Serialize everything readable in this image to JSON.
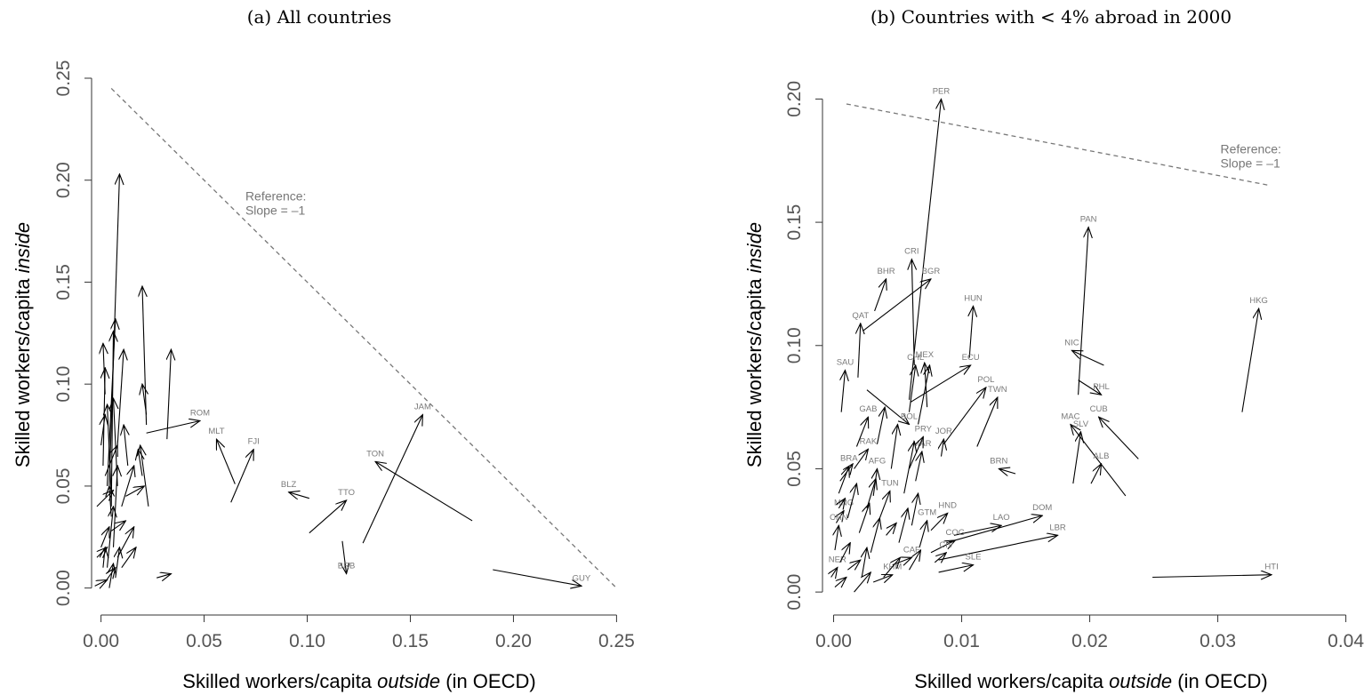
{
  "chart_data": [
    {
      "type": "scatter",
      "title": "(a) All countries",
      "xlabel": {
        "pre": "Skilled workers/capita ",
        "em": "outside",
        "post": " (in OECD)"
      },
      "ylabel": {
        "pre": "Skilled workers/capita ",
        "em": "inside",
        "post": ""
      },
      "xlim": [
        -0.005,
        0.255
      ],
      "ylim": [
        -0.008,
        0.25
      ],
      "xticks": [
        0,
        0.05,
        0.1,
        0.15,
        0.2,
        0.25
      ],
      "xtick_labels": [
        "0.00",
        "0.05",
        "0.10",
        "0.15",
        "0.20",
        "0.25"
      ],
      "yticks": [
        0,
        0.05,
        0.1,
        0.15,
        0.2,
        0.25
      ],
      "ytick_labels": [
        "0.00",
        "0.05",
        "0.10",
        "0.15",
        "0.20",
        "0.25"
      ],
      "reference_line": {
        "x": [
          0.005,
          0.25
        ],
        "y": [
          0.245,
          0.0
        ],
        "label_lines": [
          "Reference:",
          "Slope = –1"
        ],
        "label_at": [
          0.07,
          0.19
        ]
      },
      "arrows": [
        {
          "label": "GUY",
          "x0": 0.19,
          "y0": 0.009,
          "x1": 0.233,
          "y1": 0.001
        },
        {
          "label": "JAM",
          "x0": 0.127,
          "y0": 0.022,
          "x1": 0.156,
          "y1": 0.085
        },
        {
          "label": "TON",
          "x0": 0.18,
          "y0": 0.033,
          "x1": 0.133,
          "y1": 0.062
        },
        {
          "label": "TTO",
          "x0": 0.101,
          "y0": 0.027,
          "x1": 0.119,
          "y1": 0.043
        },
        {
          "label": "BRB",
          "x0": 0.117,
          "y0": 0.023,
          "x1": 0.119,
          "y1": 0.007
        },
        {
          "label": "BLZ",
          "x0": 0.101,
          "y0": 0.044,
          "x1": 0.091,
          "y1": 0.047
        },
        {
          "label": "FJI",
          "x0": 0.063,
          "y0": 0.042,
          "x1": 0.074,
          "y1": 0.068
        },
        {
          "label": "MLT",
          "x0": 0.065,
          "y0": 0.051,
          "x1": 0.056,
          "y1": 0.073
        },
        {
          "label": "ROM",
          "x0": 0.022,
          "y0": 0.076,
          "x1": 0.048,
          "y1": 0.082
        },
        {
          "label": "",
          "x0": 0.027,
          "y0": 0.005,
          "x1": 0.034,
          "y1": 0.007
        },
        {
          "label": "",
          "x0": 0.032,
          "y0": 0.073,
          "x1": 0.034,
          "y1": 0.117
        },
        {
          "label": "",
          "x0": 0.004,
          "y0": 0.05,
          "x1": 0.009,
          "y1": 0.203
        },
        {
          "label": "",
          "x0": 0.022,
          "y0": 0.08,
          "x1": 0.02,
          "y1": 0.148
        },
        {
          "label": "",
          "x0": 0.003,
          "y0": 0.05,
          "x1": 0.007,
          "y1": 0.132
        },
        {
          "label": "",
          "x0": 0.005,
          "y0": 0.04,
          "x1": 0.006,
          "y1": 0.126
        },
        {
          "label": "",
          "x0": 0.002,
          "y0": 0.095,
          "x1": 0.001,
          "y1": 0.12
        },
        {
          "label": "",
          "x0": 0.008,
          "y0": 0.07,
          "x1": 0.011,
          "y1": 0.117
        },
        {
          "label": "",
          "x0": 0.001,
          "y0": 0.06,
          "x1": 0.002,
          "y1": 0.108
        },
        {
          "label": "",
          "x0": 0.022,
          "y0": 0.085,
          "x1": 0.02,
          "y1": 0.1
        },
        {
          "label": "",
          "x0": 0.008,
          "y0": 0.05,
          "x1": 0.006,
          "y1": 0.093
        },
        {
          "label": "",
          "x0": 0.005,
          "y0": 0.045,
          "x1": 0.003,
          "y1": 0.09
        },
        {
          "label": "",
          "x0": 0.013,
          "y0": 0.06,
          "x1": 0.011,
          "y1": 0.08
        },
        {
          "label": "",
          "x0": 0.023,
          "y0": 0.04,
          "x1": 0.019,
          "y1": 0.07
        },
        {
          "label": "",
          "x0": 0.02,
          "y0": 0.055,
          "x1": 0.018,
          "y1": 0.068
        },
        {
          "label": "",
          "x0": 0.0,
          "y0": 0.07,
          "x1": 0.002,
          "y1": 0.085
        },
        {
          "label": "",
          "x0": 0.006,
          "y0": 0.02,
          "x1": 0.008,
          "y1": 0.06
        },
        {
          "label": "",
          "x0": -0.002,
          "y0": 0.04,
          "x1": 0.006,
          "y1": 0.048
        },
        {
          "label": "",
          "x0": 0.012,
          "y0": 0.045,
          "x1": 0.021,
          "y1": 0.05
        },
        {
          "label": "",
          "x0": 0.01,
          "y0": 0.04,
          "x1": 0.016,
          "y1": 0.06
        },
        {
          "label": "",
          "x0": 0.003,
          "y0": 0.01,
          "x1": 0.006,
          "y1": 0.04
        },
        {
          "label": "",
          "x0": 0.0,
          "y0": 0.02,
          "x1": 0.004,
          "y1": 0.03
        },
        {
          "label": "",
          "x0": 0.008,
          "y0": 0.015,
          "x1": 0.016,
          "y1": 0.03
        },
        {
          "label": "",
          "x0": 0.01,
          "y0": 0.01,
          "x1": 0.017,
          "y1": 0.02
        },
        {
          "label": "",
          "x0": 0.005,
          "y0": 0.028,
          "x1": 0.012,
          "y1": 0.033
        },
        {
          "label": "",
          "x0": 0.002,
          "y0": 0.003,
          "x1": 0.007,
          "y1": 0.01
        },
        {
          "label": "",
          "x0": -0.003,
          "y0": 0.001,
          "x1": 0.003,
          "y1": 0.004
        },
        {
          "label": "",
          "x0": 0.001,
          "y0": 0.01,
          "x1": 0.002,
          "y1": 0.02
        },
        {
          "label": "",
          "x0": 0.004,
          "y0": 0.0,
          "x1": 0.006,
          "y1": 0.012
        },
        {
          "label": "",
          "x0": 0.005,
          "y0": 0.035,
          "x1": 0.004,
          "y1": 0.05
        },
        {
          "label": "",
          "x0": 0.002,
          "y0": 0.055,
          "x1": 0.008,
          "y1": 0.07
        },
        {
          "label": "",
          "x0": -0.002,
          "y0": 0.015,
          "x1": 0.003,
          "y1": 0.02
        },
        {
          "label": "",
          "x0": 0.007,
          "y0": 0.005,
          "x1": 0.009,
          "y1": 0.02
        }
      ]
    },
    {
      "type": "scatter",
      "title": "(b) Countries with < 4% abroad in 2000",
      "xlabel": {
        "pre": "Skilled workers/capita ",
        "em": "outside",
        "post": " (in OECD)"
      },
      "ylabel": {
        "pre": "Skilled workers/capita ",
        "em": "inside",
        "post": ""
      },
      "xlim": [
        -0.0008,
        0.041
      ],
      "ylim": [
        -0.005,
        0.207
      ],
      "xticks": [
        0,
        0.01,
        0.02,
        0.03,
        0.04
      ],
      "xtick_labels": [
        "0.00",
        "0.01",
        "0.02",
        "0.03",
        "0.04"
      ],
      "yticks": [
        0,
        0.05,
        0.1,
        0.15,
        0.2
      ],
      "ytick_labels": [
        "0.00",
        "0.05",
        "0.10",
        "0.15",
        "0.20"
      ],
      "reference_line": {
        "x": [
          0.001,
          0.034
        ],
        "y": [
          0.198,
          0.165
        ],
        "label_lines": [
          "Reference:",
          "Slope = –1"
        ],
        "label_at": [
          0.0302,
          0.178
        ]
      },
      "arrows": [
        {
          "label": "PER",
          "x0": 0.0059,
          "y0": 0.078,
          "x1": 0.0084,
          "y1": 0.2
        },
        {
          "label": "PAN",
          "x0": 0.0191,
          "y0": 0.08,
          "x1": 0.0199,
          "y1": 0.148
        },
        {
          "label": "HKG",
          "x0": 0.0319,
          "y0": 0.073,
          "x1": 0.0332,
          "y1": 0.115
        },
        {
          "label": "CRI",
          "x0": 0.0063,
          "y0": 0.092,
          "x1": 0.0061,
          "y1": 0.135
        },
        {
          "label": "BHR",
          "x0": 0.0032,
          "y0": 0.114,
          "x1": 0.0041,
          "y1": 0.127
        },
        {
          "label": "BGR",
          "x0": 0.0023,
          "y0": 0.106,
          "x1": 0.0076,
          "y1": 0.127
        },
        {
          "label": "QAT",
          "x0": 0.0019,
          "y0": 0.087,
          "x1": 0.0021,
          "y1": 0.109
        },
        {
          "label": "HUN",
          "x0": 0.0106,
          "y0": 0.095,
          "x1": 0.0109,
          "y1": 0.116
        },
        {
          "label": "NIC",
          "x0": 0.0211,
          "y0": 0.092,
          "x1": 0.0186,
          "y1": 0.098
        },
        {
          "label": "SAU",
          "x0": 0.0006,
          "y0": 0.073,
          "x1": 0.0009,
          "y1": 0.09
        },
        {
          "label": "ECU",
          "x0": 0.006,
          "y0": 0.077,
          "x1": 0.0107,
          "y1": 0.092
        },
        {
          "label": "POL",
          "x0": 0.0086,
          "y0": 0.06,
          "x1": 0.0119,
          "y1": 0.083
        },
        {
          "label": "TWN",
          "x0": 0.0112,
          "y0": 0.059,
          "x1": 0.0128,
          "y1": 0.079
        },
        {
          "label": "PHL",
          "x0": 0.0191,
          "y0": 0.086,
          "x1": 0.0209,
          "y1": 0.08
        },
        {
          "label": "CUB",
          "x0": 0.0238,
          "y0": 0.054,
          "x1": 0.0207,
          "y1": 0.071
        },
        {
          "label": "MAC",
          "x0": 0.0228,
          "y0": 0.039,
          "x1": 0.0185,
          "y1": 0.068
        },
        {
          "label": "SLV",
          "x0": 0.0187,
          "y0": 0.044,
          "x1": 0.0193,
          "y1": 0.065
        },
        {
          "label": "ALB",
          "x0": 0.0201,
          "y0": 0.044,
          "x1": 0.0209,
          "y1": 0.052
        },
        {
          "label": "BRN",
          "x0": 0.0142,
          "y0": 0.048,
          "x1": 0.0129,
          "y1": 0.05
        },
        {
          "label": "DOM",
          "x0": 0.0088,
          "y0": 0.02,
          "x1": 0.0163,
          "y1": 0.031
        },
        {
          "label": "HTI",
          "x0": 0.0249,
          "y0": 0.006,
          "x1": 0.0342,
          "y1": 0.007
        },
        {
          "label": "LBR",
          "x0": 0.0082,
          "y0": 0.013,
          "x1": 0.0175,
          "y1": 0.023
        },
        {
          "label": "LAO",
          "x0": 0.0094,
          "y0": 0.023,
          "x1": 0.0131,
          "y1": 0.027
        },
        {
          "label": "HND",
          "x0": 0.0076,
          "y0": 0.025,
          "x1": 0.0089,
          "y1": 0.032
        },
        {
          "label": "COG",
          "x0": 0.0076,
          "y0": 0.016,
          "x1": 0.0095,
          "y1": 0.021
        },
        {
          "label": "CIV",
          "x0": 0.0079,
          "y0": 0.012,
          "x1": 0.0088,
          "y1": 0.016
        },
        {
          "label": "SLE",
          "x0": 0.0082,
          "y0": 0.008,
          "x1": 0.0109,
          "y1": 0.011
        },
        {
          "label": "JOR",
          "x0": 0.0084,
          "y0": 0.055,
          "x1": 0.0086,
          "y1": 0.062
        },
        {
          "label": "MAR",
          "x0": 0.0064,
          "y0": 0.045,
          "x1": 0.0069,
          "y1": 0.057
        },
        {
          "label": "PRY",
          "x0": 0.0059,
          "y0": 0.05,
          "x1": 0.007,
          "y1": 0.063
        },
        {
          "label": "BOL",
          "x0": 0.0026,
          "y0": 0.082,
          "x1": 0.0059,
          "y1": 0.068
        },
        {
          "label": "MEX",
          "x0": 0.0073,
          "y0": 0.075,
          "x1": 0.0071,
          "y1": 0.093
        },
        {
          "label": "CHL",
          "x0": 0.0059,
          "y0": 0.073,
          "x1": 0.0064,
          "y1": 0.092
        },
        {
          "label": "GAB",
          "x0": 0.0018,
          "y0": 0.059,
          "x1": 0.0027,
          "y1": 0.071
        },
        {
          "label": "RAK",
          "x0": 0.0016,
          "y0": 0.05,
          "x1": 0.0027,
          "y1": 0.058
        },
        {
          "label": "AFG",
          "x0": 0.0031,
          "y0": 0.039,
          "x1": 0.0034,
          "y1": 0.05
        },
        {
          "label": "BRA",
          "x0": 0.0004,
          "y0": 0.04,
          "x1": 0.0012,
          "y1": 0.051
        },
        {
          "label": "TUN",
          "x0": 0.0036,
          "y0": 0.03,
          "x1": 0.0044,
          "y1": 0.041
        },
        {
          "label": "GTM",
          "x0": 0.0067,
          "y0": 0.018,
          "x1": 0.0073,
          "y1": 0.029
        },
        {
          "label": "CAF",
          "x0": 0.0046,
          "y0": 0.011,
          "x1": 0.0061,
          "y1": 0.014
        },
        {
          "label": "KHM",
          "x0": 0.0031,
          "y0": 0.004,
          "x1": 0.0046,
          "y1": 0.007
        },
        {
          "label": "MNG",
          "x0": 0.0002,
          "y0": 0.028,
          "x1": 0.0008,
          "y1": 0.033
        },
        {
          "label": "CHN",
          "x0": 0.0001,
          "y0": 0.017,
          "x1": 0.0004,
          "y1": 0.027
        },
        {
          "label": "NER",
          "x0": -0.0002,
          "y0": 0.006,
          "x1": 0.0003,
          "y1": 0.01
        },
        {
          "label": "",
          "x0": 0.0066,
          "y0": 0.068,
          "x1": 0.0075,
          "y1": 0.092
        },
        {
          "label": "",
          "x0": 0.0055,
          "y0": 0.04,
          "x1": 0.0063,
          "y1": 0.061
        },
        {
          "label": "",
          "x0": 0.0034,
          "y0": 0.06,
          "x1": 0.004,
          "y1": 0.075
        },
        {
          "label": "",
          "x0": 0.0045,
          "y0": 0.05,
          "x1": 0.005,
          "y1": 0.068
        },
        {
          "label": "",
          "x0": 0.0005,
          "y0": 0.045,
          "x1": 0.0015,
          "y1": 0.052
        },
        {
          "label": "",
          "x0": 0.0011,
          "y0": 0.03,
          "x1": 0.0018,
          "y1": 0.044
        },
        {
          "label": "",
          "x0": 0.002,
          "y0": 0.024,
          "x1": 0.0028,
          "y1": 0.036
        },
        {
          "label": "",
          "x0": 0.0029,
          "y0": 0.016,
          "x1": 0.0036,
          "y1": 0.03
        },
        {
          "label": "",
          "x0": 0.0005,
          "y0": 0.012,
          "x1": 0.0013,
          "y1": 0.02
        },
        {
          "label": "",
          "x0": 0.0039,
          "y0": 0.006,
          "x1": 0.0052,
          "y1": 0.014
        },
        {
          "label": "",
          "x0": 0.0051,
          "y0": 0.02,
          "x1": 0.0058,
          "y1": 0.034
        },
        {
          "label": "",
          "x0": 0.0061,
          "y0": 0.027,
          "x1": 0.0066,
          "y1": 0.04
        },
        {
          "label": "",
          "x0": 0.0016,
          "y0": 0.0,
          "x1": 0.0029,
          "y1": 0.008
        },
        {
          "label": "",
          "x0": 0.0001,
          "y0": 0.002,
          "x1": 0.001,
          "y1": 0.006
        },
        {
          "label": "",
          "x0": 0.0022,
          "y0": 0.006,
          "x1": 0.0026,
          "y1": 0.018
        },
        {
          "label": "",
          "x0": 0.0041,
          "y0": 0.023,
          "x1": 0.0049,
          "y1": 0.028
        },
        {
          "label": "",
          "x0": 0.0004,
          "y0": 0.034,
          "x1": 0.0009,
          "y1": 0.038
        },
        {
          "label": "",
          "x0": 0.0059,
          "y0": 0.009,
          "x1": 0.0068,
          "y1": 0.017
        },
        {
          "label": "",
          "x0": 0.0011,
          "y0": 0.009,
          "x1": 0.0021,
          "y1": 0.013
        },
        {
          "label": "",
          "x0": 0.0026,
          "y0": 0.034,
          "x1": 0.0033,
          "y1": 0.046
        }
      ]
    }
  ]
}
